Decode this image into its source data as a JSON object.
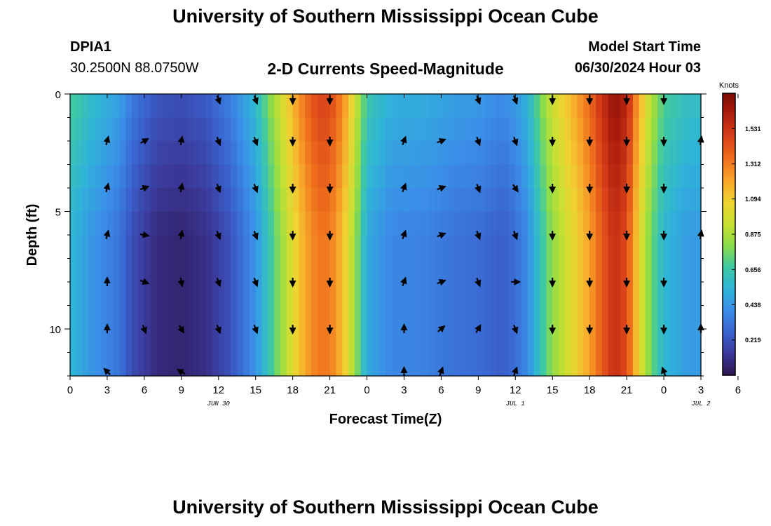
{
  "header": {
    "title": "University of Southern Mississippi Ocean Cube",
    "station": "DPIA1",
    "coords": "30.2500N  88.0750W",
    "plot_title": "2-D Currents Speed-Magnitude",
    "model_label": "Model Start Time",
    "model_time": "06/30/2024 Hour 03",
    "footer_title": "University of Southern Mississippi Ocean Cube"
  },
  "colors": {
    "ramp": [
      "#2d1550",
      "#3b3a9a",
      "#3a63d0",
      "#3b8ee8",
      "#2fb4d8",
      "#3fc9a2",
      "#8ddc48",
      "#c8e032",
      "#f0d232",
      "#f7a52a",
      "#ef6e1c",
      "#d8401a",
      "#b0200e",
      "#7a0a05"
    ],
    "arrow": "#000000"
  },
  "chart_data": {
    "type": "heatmap",
    "title": "2-D Currents Speed-Magnitude",
    "xlabel": "Forecast Time(Z)",
    "ylabel": "Depth (ft)",
    "x_hours": [
      0,
      51
    ],
    "x_tick_labels": [
      "0",
      "3",
      "6",
      "9",
      "12",
      "15",
      "18",
      "21",
      "0",
      "3",
      "6",
      "9",
      "12",
      "15",
      "18",
      "21",
      "0",
      "3",
      "6"
    ],
    "date_labels": [
      {
        "text": "JUN 30",
        "hour": 12
      },
      {
        "text": "JUL 1",
        "hour": 36
      },
      {
        "text": "JUL 2",
        "hour": 51
      }
    ],
    "y_range": [
      0,
      12
    ],
    "y_ticks": [
      0,
      5,
      10
    ],
    "colorbar": {
      "label": "Knots",
      "range": [
        0,
        1.75
      ],
      "tick_values": [
        1.531,
        1.312,
        1.094,
        0.875,
        0.656,
        0.438,
        0.219
      ],
      "tick_labels": [
        "1.531",
        "1.312",
        "1.094",
        "0.875",
        "0.656",
        "0.438",
        "0.219"
      ]
    },
    "speed_profile": {
      "hours": [
        0,
        2,
        4,
        5,
        7,
        9,
        11,
        13,
        15,
        16,
        17,
        18,
        19,
        20,
        21,
        22,
        23,
        24,
        26,
        29,
        31,
        33,
        35,
        36,
        37,
        38,
        39,
        40,
        41,
        42,
        43,
        44,
        45,
        46,
        47,
        48,
        50,
        51
      ],
      "knots": [
        0.55,
        0.42,
        0.32,
        0.2,
        0.08,
        0.06,
        0.1,
        0.22,
        0.42,
        0.62,
        0.82,
        1.02,
        1.2,
        1.32,
        1.32,
        1.15,
        0.85,
        0.5,
        0.38,
        0.36,
        0.32,
        0.3,
        0.25,
        0.3,
        0.4,
        0.62,
        0.82,
        0.95,
        1.08,
        1.22,
        1.4,
        1.55,
        1.45,
        1.05,
        0.75,
        0.55,
        0.45,
        0.45
      ]
    },
    "surface_boost_knots": 0.15,
    "arrows": {
      "hours": [
        3,
        6,
        9,
        12,
        15,
        18,
        21,
        27,
        30,
        33,
        36,
        39,
        42,
        45,
        48,
        51
      ],
      "depths": [
        0,
        2,
        4,
        6,
        8,
        10,
        12
      ],
      "directions_deg": [
        [
          null,
          null,
          null,
          160,
          160,
          180,
          180,
          null,
          null,
          160,
          160,
          180,
          180,
          180,
          180,
          null
        ],
        [
          15,
          60,
          10,
          160,
          160,
          180,
          180,
          20,
          70,
          160,
          160,
          180,
          180,
          180,
          180,
          10
        ],
        [
          15,
          70,
          10,
          160,
          160,
          180,
          180,
          20,
          70,
          160,
          145,
          180,
          180,
          180,
          180,
          null
        ],
        [
          15,
          100,
          10,
          160,
          160,
          180,
          180,
          20,
          70,
          160,
          160,
          180,
          180,
          180,
          180,
          10
        ],
        [
          0,
          110,
          170,
          160,
          160,
          180,
          180,
          20,
          70,
          160,
          90,
          180,
          180,
          180,
          180,
          null
        ],
        [
          0,
          160,
          150,
          160,
          160,
          180,
          180,
          0,
          50,
          30,
          160,
          180,
          180,
          180,
          180,
          0
        ],
        [
          315,
          null,
          300,
          null,
          null,
          null,
          null,
          0,
          20,
          null,
          20,
          null,
          null,
          null,
          340,
          null
        ]
      ]
    }
  }
}
